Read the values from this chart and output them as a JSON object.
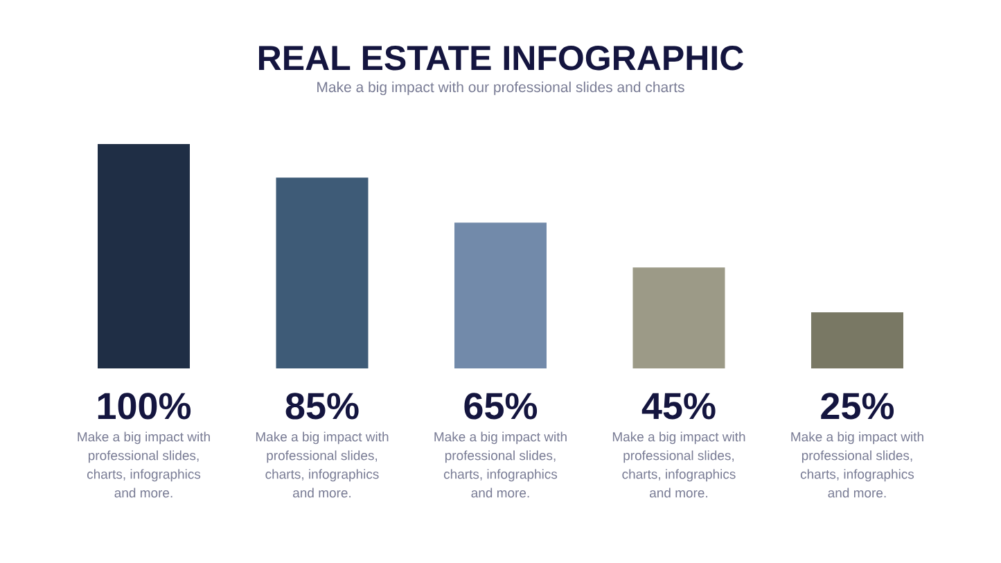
{
  "chart_data": {
    "type": "bar",
    "title": "REAL ESTATE INFOGRAPHIC",
    "subtitle": "Make a big impact with our professional slides and charts",
    "categories": [
      "Make a big impact with professional slides, charts, infographics and more.",
      "Make a big impact with professional slides, charts, infographics and more.",
      "Make a big impact with professional slides, charts, infographics and more.",
      "Make a big impact with professional slides, charts, infographics and more.",
      "Make a big impact with professional slides, charts, infographics and more."
    ],
    "values": [
      100,
      85,
      65,
      45,
      25
    ],
    "value_labels": [
      "100%",
      "85%",
      "65%",
      "45%",
      "25%"
    ],
    "colors": [
      "#1f2e45",
      "#3e5b77",
      "#728aaa",
      "#9c9a87",
      "#797864"
    ]
  }
}
